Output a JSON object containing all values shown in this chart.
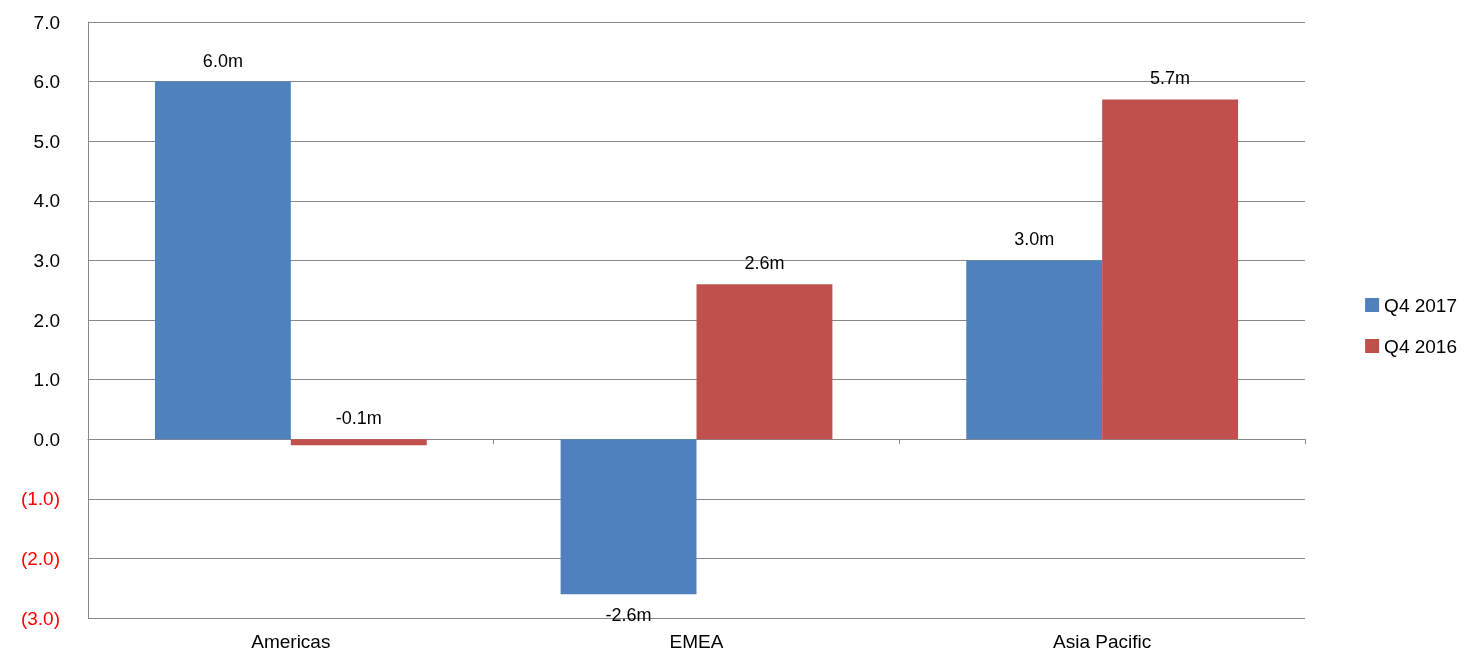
{
  "chart_data": {
    "type": "bar",
    "categories": [
      "Americas",
      "EMEA",
      "Asia Pacific"
    ],
    "series": [
      {
        "name": "Q4 2017",
        "color": "#4f81bd",
        "values": [
          6.0,
          -2.6,
          3.0
        ],
        "value_labels": [
          "6.0m",
          "-2.6m",
          "3.0m"
        ]
      },
      {
        "name": "Q4 2016",
        "color": "#c0504d",
        "values": [
          -0.1,
          2.6,
          5.7
        ],
        "value_labels": [
          "-0.1m",
          "2.6m",
          "5.7m"
        ]
      }
    ],
    "ylim": [
      -3,
      7
    ],
    "yticks": [
      {
        "value": -3,
        "label": "(3.0)"
      },
      {
        "value": -2,
        "label": "(2.0)"
      },
      {
        "value": -1,
        "label": "(1.0)"
      },
      {
        "value": 0,
        "label": "0.0"
      },
      {
        "value": 1,
        "label": "1.0"
      },
      {
        "value": 2,
        "label": "2.0"
      },
      {
        "value": 3,
        "label": "3.0"
      },
      {
        "value": 4,
        "label": "4.0"
      },
      {
        "value": 5,
        "label": "5.0"
      },
      {
        "value": 6,
        "label": "6.0"
      },
      {
        "value": 7,
        "label": "7.0"
      }
    ],
    "grid": "y",
    "legend": "right"
  }
}
